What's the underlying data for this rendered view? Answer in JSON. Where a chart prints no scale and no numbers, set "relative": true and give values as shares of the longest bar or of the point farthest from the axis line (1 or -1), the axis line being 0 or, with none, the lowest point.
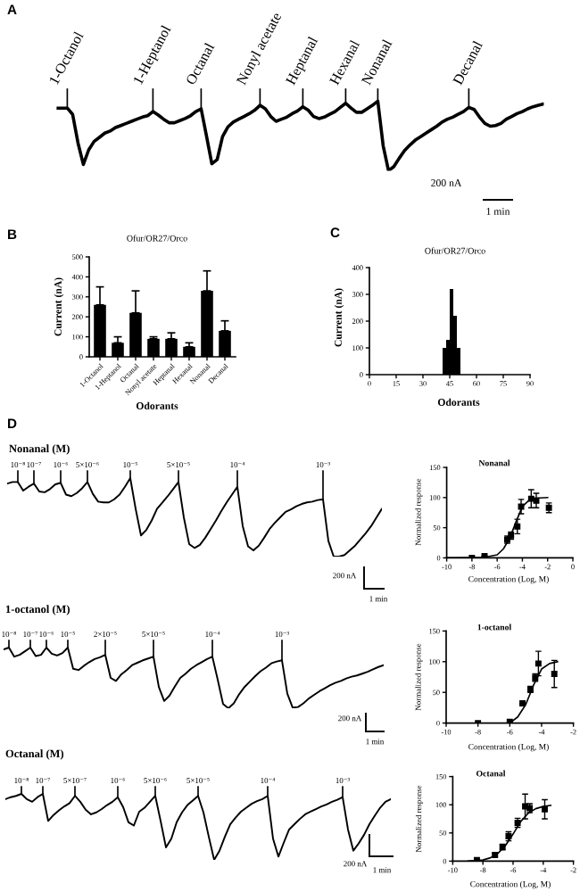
{
  "chart_data": [
    {
      "type": "line",
      "relative": true,
      "color": "#000000",
      "annotations": [
        "A",
        "200 nA",
        "1 min"
      ],
      "categories": [
        null,
        null,
        "1-Octanol",
        null,
        null,
        null,
        null,
        null,
        null,
        null,
        null,
        null,
        null,
        null,
        null,
        null,
        null,
        null,
        "1-Heptanol",
        null,
        null,
        null,
        null,
        null,
        null,
        null,
        null,
        "Octanal",
        null,
        null,
        null,
        null,
        null,
        null,
        null,
        null,
        null,
        null,
        "Nonyl acetate",
        null,
        null,
        null,
        null,
        null,
        null,
        null,
        "Heptanal",
        null,
        null,
        null,
        null,
        null,
        null,
        null,
        "Hexanal",
        null,
        null,
        null,
        null,
        null,
        "Nonanal",
        null,
        null,
        null,
        null,
        null,
        null,
        null,
        null,
        null,
        null,
        null,
        null,
        null,
        null,
        null,
        null,
        "Decanal",
        null,
        null,
        null,
        null,
        null,
        null,
        null,
        null,
        null,
        null,
        null,
        null,
        null,
        null
      ],
      "values": [
        0.9,
        0.9,
        0.9,
        0.81,
        0.4,
        0.09,
        0.3,
        0.42,
        0.48,
        0.54,
        0.57,
        0.62,
        0.65,
        0.68,
        0.71,
        0.74,
        0.77,
        0.79,
        0.85,
        0.8,
        0.74,
        0.69,
        0.69,
        0.72,
        0.75,
        0.79,
        0.85,
        0.89,
        0.5,
        0.1,
        0.16,
        0.49,
        0.63,
        0.7,
        0.74,
        0.78,
        0.82,
        0.87,
        0.94,
        0.89,
        0.78,
        0.71,
        0.74,
        0.77,
        0.82,
        0.86,
        0.92,
        0.87,
        0.78,
        0.75,
        0.77,
        0.81,
        0.85,
        0.91,
        0.97,
        0.9,
        0.84,
        0.84,
        0.89,
        0.94,
        1,
        0.36,
        0,
        0.06,
        0.18,
        0.29,
        0.37,
        0.44,
        0.49,
        0.54,
        0.59,
        0.64,
        0.7,
        0.74,
        0.77,
        0.81,
        0.85,
        0.91,
        0.88,
        0.77,
        0.68,
        0.64,
        0.65,
        0.68,
        0.74,
        0.78,
        0.82,
        0.85,
        0.89,
        0.92,
        0.94,
        0.96
      ]
    },
    {
      "type": "bar",
      "title": "Ofur/OR27/Orco",
      "xlabel": "Odorants",
      "ylabel": "Current (nA)",
      "color": "#000000",
      "annotations": [
        "B"
      ],
      "categories": [
        "1-Octanol",
        "1-Heptanol",
        "Octanal",
        "Nonyl acetate",
        "Heptanal",
        "Hexanal",
        "Nonanal",
        "Decanal"
      ],
      "values": [
        260,
        70,
        220,
        90,
        90,
        50,
        330,
        130
      ],
      "errors": [
        [
          260,
          350
        ],
        [
          70,
          100
        ],
        [
          220,
          330
        ],
        [
          90,
          100
        ],
        [
          90,
          120
        ],
        [
          50,
          70
        ],
        [
          330,
          430
        ],
        [
          130,
          180
        ]
      ],
      "ylim": [
        0,
        500
      ],
      "yticks": [
        0,
        100,
        200,
        300,
        400,
        500
      ]
    },
    {
      "type": "histogram",
      "title": "Ofur/OR27/Orco",
      "xlabel": "Odorants",
      "ylabel": "Current (nA)",
      "color": "#000000",
      "annotations": [
        "C"
      ],
      "bins": [
        41,
        43,
        45,
        47,
        49,
        51
      ],
      "values": [
        100,
        130,
        320,
        220,
        100
      ],
      "xlim": [
        0,
        90
      ],
      "xticks": [
        0,
        15,
        30,
        45,
        60,
        75,
        90
      ],
      "ylim": [
        0,
        400
      ],
      "yticks": [
        0,
        100,
        200,
        300,
        400
      ]
    },
    {
      "type": "line",
      "relative": true,
      "title": "Nonanal (M)",
      "color": "#000000",
      "annotations": [
        "D",
        "200 nA",
        "1 min"
      ],
      "categories": [
        null,
        null,
        "10⁻⁸",
        null,
        null,
        "10⁻⁷",
        null,
        null,
        null,
        null,
        "10⁻⁶",
        null,
        null,
        null,
        null,
        "5×10⁻⁶",
        null,
        null,
        null,
        null,
        null,
        null,
        null,
        "10⁻⁵",
        null,
        null,
        null,
        null,
        null,
        null,
        null,
        null,
        "5×10⁻⁵",
        null,
        null,
        null,
        null,
        null,
        null,
        null,
        null,
        null,
        null,
        "10⁻⁴",
        null,
        null,
        null,
        null,
        null,
        null,
        null,
        null,
        null,
        null,
        null,
        null,
        null,
        null,
        null,
        "10⁻³",
        null,
        null,
        null,
        null,
        null,
        null,
        null,
        null,
        null,
        null,
        null
      ],
      "values": [
        0.93,
        0.95,
        0.95,
        0.84,
        0.89,
        0.93,
        0.83,
        0.82,
        0.86,
        0.92,
        0.94,
        0.79,
        0.77,
        0.81,
        0.87,
        0.95,
        0.8,
        0.7,
        0.69,
        0.69,
        0.73,
        0.79,
        0.89,
        1,
        0.61,
        0.27,
        0.34,
        0.46,
        0.61,
        0.69,
        0.77,
        0.86,
        0.95,
        0.5,
        0.16,
        0.11,
        0.15,
        0.24,
        0.35,
        0.46,
        0.58,
        0.69,
        0.79,
        0.89,
        0.39,
        0.13,
        0.08,
        0.14,
        0.24,
        0.35,
        0.43,
        0.5,
        0.57,
        0.6,
        0.64,
        0.67,
        0.69,
        0.7,
        0.72,
        0.73,
        0.2,
        0,
        0,
        0.02,
        0.08,
        0.14,
        0.22,
        0.3,
        0.39,
        0.5,
        0.61
      ]
    },
    {
      "type": "scatter",
      "title": "Nonanal",
      "xlabel": "Concentration (Log, M)",
      "ylabel": "Normalized response",
      "xlim": [
        -10,
        0
      ],
      "xticks": [
        -10,
        -8,
        -6,
        -4,
        -2,
        0
      ],
      "ylim": [
        0,
        150
      ],
      "yticks": [
        0,
        50,
        100,
        150
      ],
      "series": [
        {
          "type": "scatter",
          "marker": "square",
          "color": "#000000",
          "x": [
            -8,
            -7,
            -5.2,
            -4.9,
            -4.4,
            -4.1,
            -3.3,
            -2.9,
            -1.9
          ],
          "values": [
            0,
            3,
            30,
            37,
            52,
            85,
            98,
            95,
            83
          ],
          "errors": [
            null,
            null,
            6,
            6,
            12,
            12,
            15,
            12,
            8
          ]
        },
        {
          "type": "line",
          "marker": "none",
          "color": "#000000",
          "x": [
            -10,
            -7,
            -6,
            -5.5,
            -5,
            -4.5,
            -4,
            -3.5,
            -3,
            -2
          ],
          "values": [
            0,
            1,
            5,
            15,
            33,
            60,
            85,
            95,
            99,
            100
          ]
        }
      ]
    },
    {
      "type": "line",
      "relative": true,
      "title": "1-octanol (M)",
      "color": "#000000",
      "annotations": [
        "200 nA",
        "1 min"
      ],
      "categories": [
        null,
        "10⁻⁸",
        null,
        null,
        null,
        "10⁻⁷",
        null,
        null,
        "10⁻⁶",
        null,
        null,
        null,
        "10⁻⁵",
        null,
        null,
        null,
        null,
        null,
        null,
        "2×10⁻⁵",
        null,
        null,
        null,
        null,
        null,
        null,
        null,
        null,
        "5×10⁻⁵",
        null,
        null,
        null,
        null,
        null,
        null,
        null,
        null,
        null,
        null,
        "10⁻⁴",
        null,
        null,
        null,
        null,
        null,
        null,
        null,
        null,
        null,
        null,
        null,
        null,
        "10⁻³",
        null,
        null,
        null,
        null,
        null,
        null,
        null,
        null,
        null,
        null,
        null,
        null,
        null,
        null,
        null,
        null,
        null,
        null,
        null
      ],
      "values": [
        0.97,
        1,
        0.85,
        0.88,
        0.94,
        1,
        0.86,
        0.88,
        1,
        0.9,
        0.87,
        0.91,
        1,
        0.65,
        0.63,
        0.7,
        0.76,
        0.81,
        0.84,
        0.88,
        0.5,
        0.45,
        0.56,
        0.63,
        0.71,
        0.75,
        0.79,
        0.82,
        0.85,
        0.35,
        0.12,
        0.21,
        0.36,
        0.5,
        0.57,
        0.65,
        0.71,
        0.76,
        0.81,
        0.85,
        0.47,
        0.07,
        0,
        0.08,
        0.23,
        0.35,
        0.44,
        0.53,
        0.61,
        0.67,
        0.74,
        0.77,
        0.79,
        0.24,
        0.01,
        0.02,
        0.08,
        0.16,
        0.22,
        0.28,
        0.33,
        0.38,
        0.42,
        0.45,
        0.49,
        0.52,
        0.54,
        0.57,
        0.6,
        0.64,
        0.68,
        0.71
      ]
    },
    {
      "type": "scatter",
      "title": "1-octanol",
      "xlabel": "Concentration (Log, M)",
      "ylabel": "Normalized response",
      "xlim": [
        -10,
        -2
      ],
      "xticks": [
        -10,
        -8,
        -6,
        -4,
        -2
      ],
      "ylim": [
        0,
        150
      ],
      "yticks": [
        0,
        50,
        100,
        150
      ],
      "series": [
        {
          "type": "scatter",
          "marker": "square",
          "color": "#000000",
          "x": [
            -8,
            -6,
            -5.2,
            -4.7,
            -4.4,
            -4.2,
            -3.2
          ],
          "values": [
            0,
            2,
            32,
            55,
            74,
            97,
            80
          ],
          "errors": [
            null,
            null,
            null,
            5,
            6,
            20,
            22
          ]
        },
        {
          "type": "line",
          "marker": "none",
          "color": "#000000",
          "x": [
            -6,
            -5.5,
            -5,
            -4.5,
            -4,
            -3.5,
            -3
          ],
          "values": [
            0,
            10,
            30,
            62,
            88,
            97,
            100
          ]
        }
      ]
    },
    {
      "type": "line",
      "relative": true,
      "title": "Octanal (M)",
      "color": "#000000",
      "annotations": [
        "200 nA",
        "1 min"
      ],
      "categories": [
        null,
        null,
        null,
        "10⁻⁸",
        null,
        null,
        null,
        "10⁻⁷",
        null,
        null,
        null,
        null,
        null,
        "5×10⁻⁷",
        null,
        null,
        null,
        null,
        null,
        null,
        null,
        "10⁻⁶",
        null,
        null,
        null,
        null,
        null,
        null,
        "5×10⁻⁶",
        null,
        null,
        null,
        null,
        null,
        null,
        null,
        "5×10⁻⁵",
        null,
        null,
        null,
        null,
        null,
        null,
        null,
        null,
        null,
        null,
        null,
        null,
        "10⁻⁴",
        null,
        null,
        null,
        null,
        null,
        null,
        null,
        null,
        null,
        null,
        null,
        null,
        null,
        "10⁻³",
        null,
        null,
        null,
        null,
        null,
        null,
        null,
        null,
        null
      ],
      "values": [
        0.92,
        0.95,
        0.97,
        1,
        0.92,
        0.88,
        0.95,
        1,
        0.59,
        0.68,
        0.75,
        0.81,
        0.86,
        0.97,
        0.88,
        0.76,
        0.69,
        0.72,
        0.77,
        0.83,
        0.88,
        0.95,
        0.8,
        0.57,
        0.52,
        0.73,
        0.79,
        0.88,
        0.97,
        0.59,
        0.19,
        0.32,
        0.57,
        0.72,
        0.83,
        0.9,
        0.97,
        0.72,
        0.35,
        0,
        0.14,
        0.35,
        0.54,
        0.64,
        0.73,
        0.79,
        0.85,
        0.89,
        0.92,
        0.97,
        0.32,
        0.05,
        0.26,
        0.46,
        0.54,
        0.62,
        0.69,
        0.73,
        0.77,
        0.81,
        0.84,
        0.88,
        0.91,
        0.95,
        0.46,
        0.14,
        0.25,
        0.38,
        0.54,
        0.67,
        0.79,
        0.88,
        0.92
      ]
    },
    {
      "type": "scatter",
      "title": "Octanal",
      "xlabel": "Concentration (Log, M)",
      "ylabel": "Normalized response",
      "xlim": [
        -10,
        -2
      ],
      "xticks": [
        -10,
        -8,
        -6,
        -4,
        -2
      ],
      "ylim": [
        0,
        150
      ],
      "yticks": [
        0,
        50,
        100,
        150
      ],
      "series": [
        {
          "type": "scatter",
          "marker": "square",
          "color": "#000000",
          "x": [
            -8.4,
            -7.2,
            -6.7,
            -6.3,
            -5.7,
            -5.2,
            -4.9,
            -3.9
          ],
          "values": [
            2,
            11,
            25,
            44,
            68,
            97,
            94,
            92
          ],
          "errors": [
            null,
            3,
            5,
            8,
            8,
            22,
            8,
            17
          ]
        },
        {
          "type": "line",
          "marker": "none",
          "color": "#000000",
          "x": [
            -9,
            -8,
            -7.5,
            -7,
            -6.5,
            -6,
            -5.5,
            -5,
            -4.5,
            -4,
            -3.5
          ],
          "values": [
            0,
            2,
            6,
            14,
            28,
            48,
            70,
            85,
            93,
            97,
            99
          ]
        }
      ]
    }
  ]
}
